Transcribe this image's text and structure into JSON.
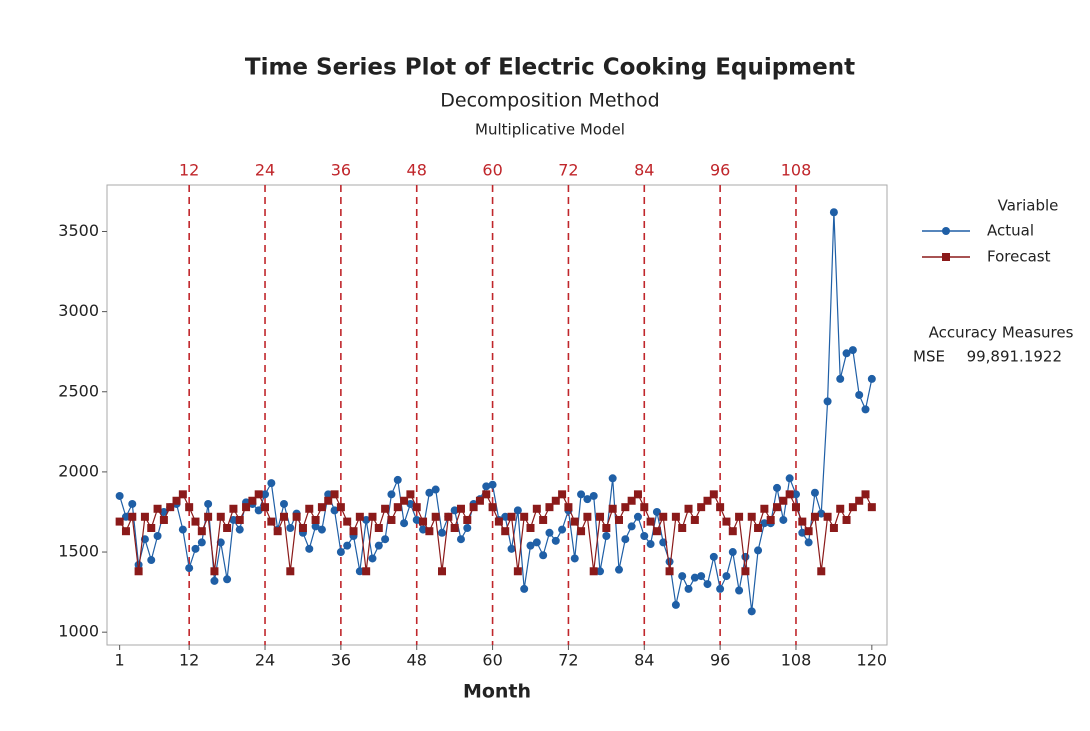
{
  "chart_data": {
    "type": "line",
    "title": "Time Series Plot of Electric Cooking Equipment",
    "subtitle": "Decomposition Method",
    "model": "Multiplicative Model",
    "x_label": "Month",
    "x": [
      1,
      2,
      3,
      4,
      5,
      6,
      7,
      8,
      9,
      10,
      11,
      12,
      13,
      14,
      15,
      16,
      17,
      18,
      19,
      20,
      21,
      22,
      23,
      24,
      25,
      26,
      27,
      28,
      29,
      30,
      31,
      32,
      33,
      34,
      35,
      36,
      37,
      38,
      39,
      40,
      41,
      42,
      43,
      44,
      45,
      46,
      47,
      48,
      49,
      50,
      51,
      52,
      53,
      54,
      55,
      56,
      57,
      58,
      59,
      60,
      61,
      62,
      63,
      64,
      65,
      66,
      67,
      68,
      69,
      70,
      71,
      72,
      73,
      74,
      75,
      76,
      77,
      78,
      79,
      80,
      81,
      82,
      83,
      84,
      85,
      86,
      87,
      88,
      89,
      90,
      91,
      92,
      93,
      94,
      95,
      96,
      97,
      98,
      99,
      100,
      101,
      102,
      103,
      104,
      105,
      106,
      107,
      108,
      109,
      110,
      111,
      112,
      113,
      114,
      115,
      116,
      117,
      118,
      119,
      120
    ],
    "series": [
      {
        "name": "Actual",
        "color": "#1f5fa6",
        "marker": "circle",
        "values": [
          1850,
          1720,
          1800,
          1420,
          1580,
          1450,
          1600,
          1750,
          1780,
          1800,
          1640,
          1400,
          1520,
          1560,
          1800,
          1320,
          1560,
          1330,
          1700,
          1640,
          1810,
          1800,
          1760,
          1860,
          1930,
          1640,
          1800,
          1650,
          1740,
          1620,
          1520,
          1660,
          1640,
          1860,
          1760,
          1500,
          1540,
          1600,
          1380,
          1700,
          1460,
          1540,
          1580,
          1860,
          1950,
          1680,
          1800,
          1700,
          1640,
          1870,
          1890,
          1620,
          1720,
          1760,
          1580,
          1650,
          1800,
          1830,
          1910,
          1920,
          1700,
          1720,
          1520,
          1760,
          1270,
          1540,
          1560,
          1480,
          1620,
          1570,
          1640,
          1760,
          1460,
          1860,
          1830,
          1850,
          1380,
          1600,
          1960,
          1390,
          1580,
          1660,
          1720,
          1600,
          1550,
          1750,
          1560,
          1440,
          1170,
          1350,
          1270,
          1340,
          1350,
          1300,
          1470,
          1270,
          1350,
          1500,
          1260,
          1470,
          1130,
          1510,
          1680,
          1680,
          1900,
          1700,
          1960,
          1860,
          1620,
          1560,
          1870,
          1740,
          2440,
          3620,
          2580,
          2740,
          2760,
          2480,
          2390,
          2580
        ]
      },
      {
        "name": "Forecast",
        "color": "#8b1a1a",
        "marker": "square",
        "values": [
          1690,
          1630,
          1720,
          1380,
          1720,
          1650,
          1770,
          1700,
          1780,
          1820,
          1860,
          1780,
          1690,
          1630,
          1720,
          1380,
          1720,
          1650,
          1770,
          1700,
          1780,
          1820,
          1860,
          1780,
          1690,
          1630,
          1720,
          1380,
          1720,
          1650,
          1770,
          1700,
          1780,
          1820,
          1860,
          1780,
          1690,
          1630,
          1720,
          1380,
          1720,
          1650,
          1770,
          1700,
          1780,
          1820,
          1860,
          1780,
          1690,
          1630,
          1720,
          1380,
          1720,
          1650,
          1770,
          1700,
          1780,
          1820,
          1860,
          1780,
          1690,
          1630,
          1720,
          1380,
          1720,
          1650,
          1770,
          1700,
          1780,
          1820,
          1860,
          1780,
          1690,
          1630,
          1720,
          1380,
          1720,
          1650,
          1770,
          1700,
          1780,
          1820,
          1860,
          1780,
          1690,
          1630,
          1720,
          1380,
          1720,
          1650,
          1770,
          1700,
          1780,
          1820,
          1860,
          1780,
          1690,
          1630,
          1720,
          1380,
          1720,
          1650,
          1770,
          1700,
          1780,
          1820,
          1860,
          1780,
          1690,
          1630,
          1720,
          1380,
          1720,
          1650,
          1770,
          1700,
          1780,
          1820,
          1860,
          1780
        ]
      }
    ],
    "xlim": [
      -1,
      122.4
    ],
    "xticks": [
      1,
      12,
      24,
      36,
      48,
      60,
      72,
      84,
      96,
      108,
      120
    ],
    "ylim": [
      920,
      3790
    ],
    "yticks": [
      1000,
      1500,
      2000,
      2500,
      3000,
      3500
    ],
    "reference_lines": [
      12,
      24,
      36,
      48,
      60,
      72,
      84,
      96,
      108
    ],
    "reference_color": "#c0262b",
    "legend_title": "Variable",
    "accuracy": {
      "title": "Accuracy Measures",
      "measure": "MSE",
      "value": "99,891.1922"
    }
  }
}
